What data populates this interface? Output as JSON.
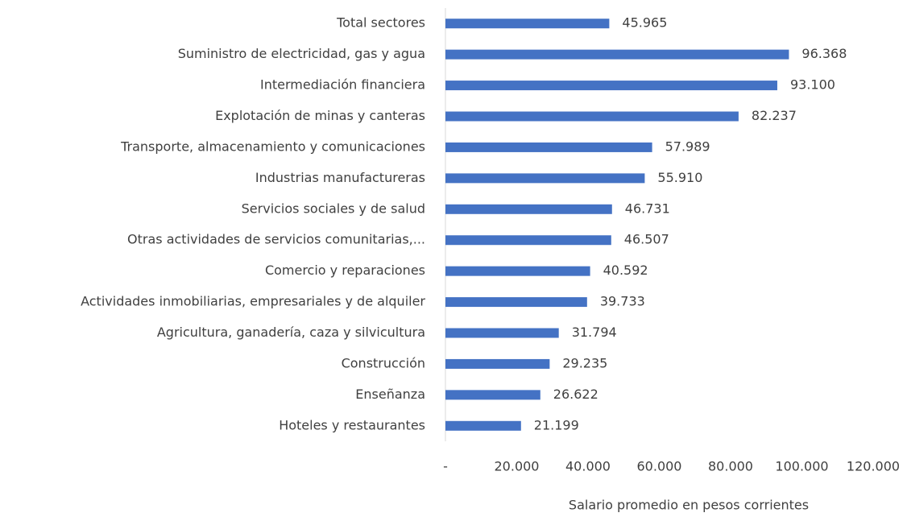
{
  "chart_data": {
    "type": "barh",
    "categories": [
      "Total sectores",
      "Suministro de electricidad, gas y agua",
      "Intermediación financiera",
      "Explotación de minas y canteras",
      "Transporte, almacenamiento y comunicaciones",
      "Industrias manufactureras",
      "Servicios sociales y de salud",
      "Otras actividades de servicios comunitarias,...",
      "Comercio y reparaciones",
      "Actividades inmobiliarias, empresariales y de alquiler",
      "Agricultura, ganadería, caza y silvicultura",
      "Construcción",
      "Enseñanza",
      "Hoteles y restaurantes"
    ],
    "values": [
      45965,
      96368,
      93100,
      82237,
      57989,
      55910,
      46731,
      46507,
      40592,
      39733,
      31794,
      29235,
      26622,
      21199
    ],
    "value_labels": [
      "45.965",
      "96.368",
      "93.100",
      "82.237",
      "57.989",
      "55.910",
      "46.731",
      "46.507",
      "40.592",
      "39.733",
      "31.794",
      "29.235",
      "26.622",
      "21.199"
    ],
    "color": "#4472c4",
    "xlim": [
      0,
      120000
    ],
    "xticks": [
      {
        "value": 0,
        "label": "-"
      },
      {
        "value": 20000,
        "label": "20.000"
      },
      {
        "value": 40000,
        "label": "40.000"
      },
      {
        "value": 60000,
        "label": "60.000"
      },
      {
        "value": 80000,
        "label": "80.000"
      },
      {
        "value": 100000,
        "label": "100.000"
      },
      {
        "value": 120000,
        "label": "120.000"
      }
    ],
    "xlabel": "Salario promedio en pesos corrientes"
  }
}
